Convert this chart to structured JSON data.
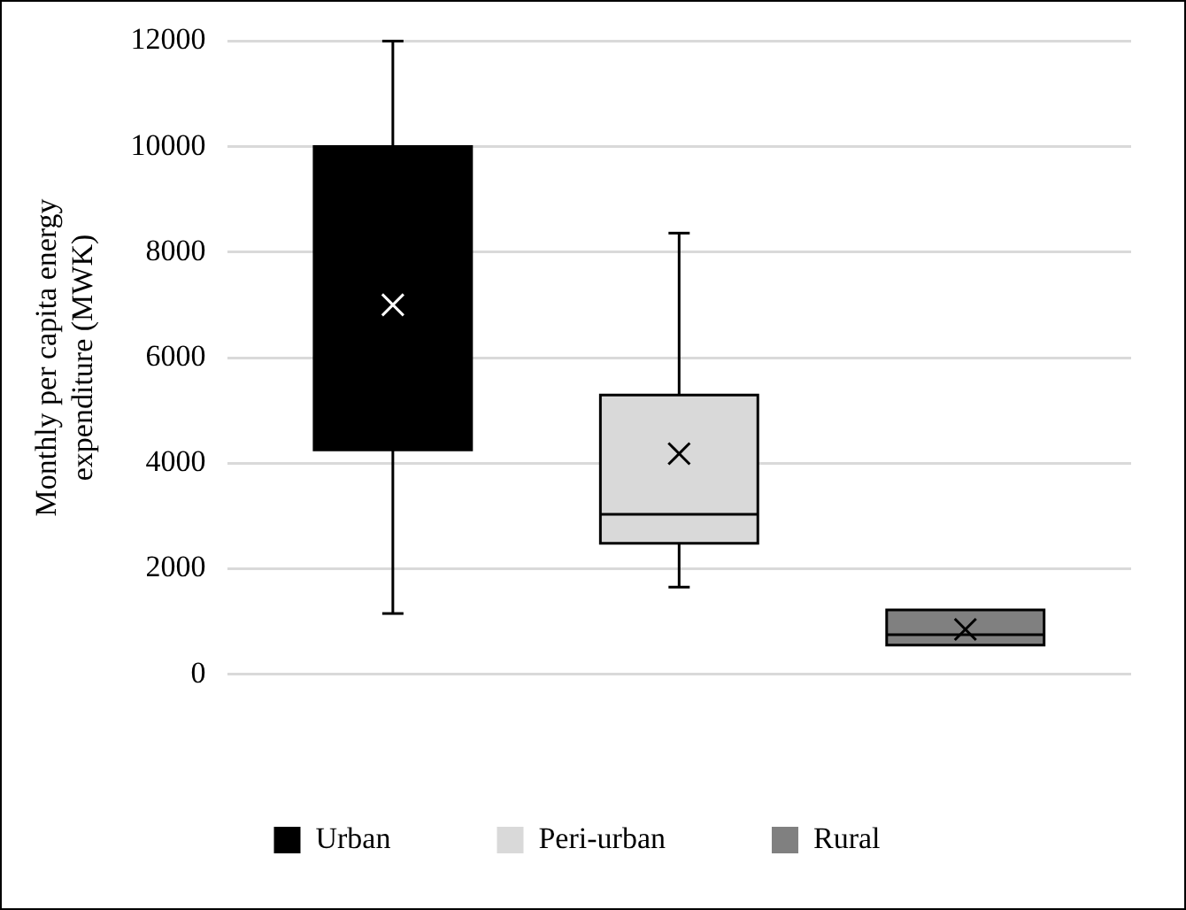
{
  "chart_data": {
    "type": "box",
    "ylabel": "Monthly per capita energy expenditure (MWK)",
    "categories": [
      null
    ],
    "series": [
      {
        "name": "Urban",
        "color": "#000000",
        "boxes": [
          {
            "low": 1150,
            "q1": 4250,
            "median": null,
            "q3": 10000,
            "high": 12000,
            "mean": 7000
          }
        ]
      },
      {
        "name": "Peri-urban",
        "color": "#d9d9d9",
        "boxes": [
          {
            "low": 1650,
            "q1": 2480,
            "median": 3030,
            "q3": 5290,
            "high": 8360,
            "mean": 4180
          }
        ]
      },
      {
        "name": "Rural",
        "color": "#808080",
        "boxes": [
          {
            "low": 550,
            "q1": 550,
            "median": 750,
            "q3": 1220,
            "high": 1220,
            "mean": 850
          }
        ]
      }
    ],
    "ylim": [
      0,
      12000
    ],
    "yticks": [
      0,
      2000,
      4000,
      6000,
      8000,
      10000,
      12000
    ],
    "grid": "y",
    "legend": "bottom"
  }
}
